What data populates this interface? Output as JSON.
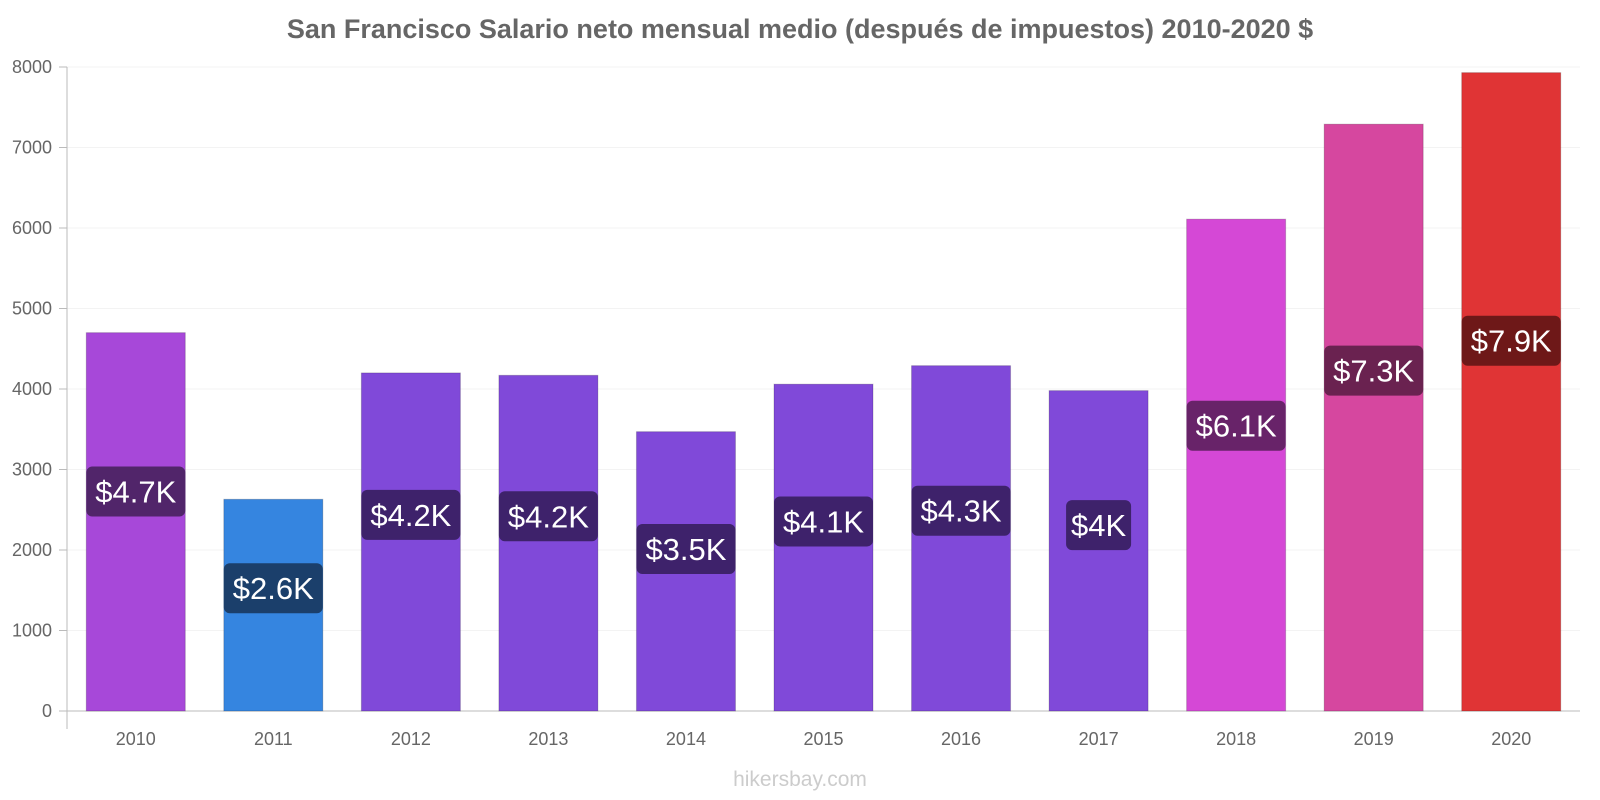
{
  "chart_data": {
    "type": "bar",
    "title": "San Francisco Salario neto mensual medio (después de impuestos) 2010-2020 $",
    "categories": [
      "2010",
      "2011",
      "2012",
      "2013",
      "2014",
      "2015",
      "2016",
      "2017",
      "2018",
      "2019",
      "2020"
    ],
    "values": [
      4700,
      2630,
      4200,
      4170,
      3470,
      4060,
      4290,
      3980,
      6110,
      7290,
      7930
    ],
    "data_labels": [
      "$4.7K",
      "$2.6K",
      "$4.2K",
      "$4.2K",
      "$3.5K",
      "$4.1K",
      "$4.3K",
      "$4K",
      "$6.1K",
      "$7.3K",
      "$7.9K"
    ],
    "bar_colors": [
      "#a748d9",
      "#3585e0",
      "#8049d9",
      "#8049d9",
      "#8049d9",
      "#8049d9",
      "#8049d9",
      "#8049d9",
      "#d548d6",
      "#d6479f",
      "#e03435"
    ],
    "label_bg_colors": [
      "#51256a",
      "#1b3f6b",
      "#3e226b",
      "#3e226b",
      "#3e226b",
      "#3e226b",
      "#3e226b",
      "#3e226b",
      "#682369",
      "#6a2250",
      "#6e1818"
    ],
    "ylim": [
      0,
      8000
    ],
    "yticks": [
      0,
      1000,
      2000,
      3000,
      4000,
      5000,
      6000,
      7000,
      8000
    ],
    "grid": true,
    "xlabel": "",
    "ylabel": ""
  },
  "footer": "hikersbay.com"
}
